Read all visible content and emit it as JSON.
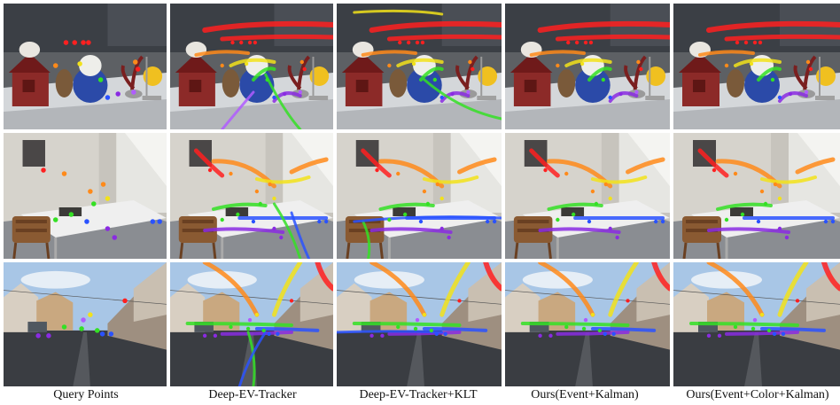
{
  "columns": [
    {
      "label": "Query Points"
    },
    {
      "label": "Deep-EV-Tracker"
    },
    {
      "label": "Deep-EV-Tracker+KLT"
    },
    {
      "label": "Ours(Event+Kalman)"
    },
    {
      "label": "Ours(Event+Color+Kalman)"
    }
  ],
  "rows": [
    {
      "scene": "indoor-toys-table"
    },
    {
      "scene": "office-desk-chair"
    },
    {
      "scene": "driving-street"
    }
  ],
  "colors": {
    "red": "#ff2020",
    "orange": "#ff8a1a",
    "yellow": "#f2e21a",
    "green": "#34e024",
    "blue": "#2a52ff",
    "purple": "#8a2be2",
    "violet": "#b05cff"
  }
}
